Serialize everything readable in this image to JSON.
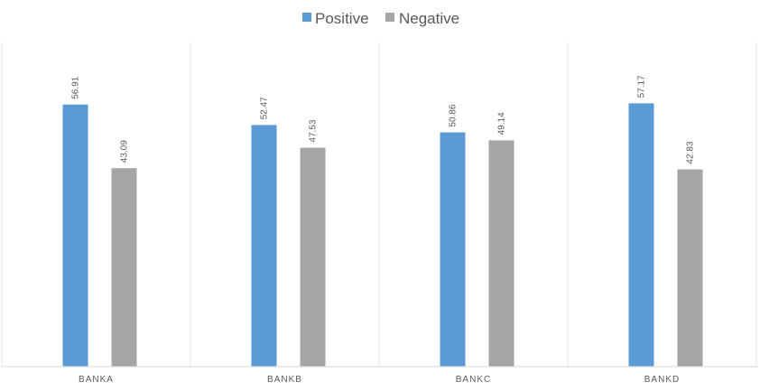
{
  "chart_data": {
    "type": "bar",
    "categories": [
      "BANKA",
      "BANKB",
      "BANKC",
      "BANKD"
    ],
    "series": [
      {
        "name": "Positive",
        "color": "#5b9bd5",
        "values": [
          56.91,
          52.47,
          50.86,
          57.17
        ]
      },
      {
        "name": "Negative",
        "color": "#a5a5a5",
        "values": [
          43.09,
          47.53,
          49.14,
          42.83
        ]
      }
    ],
    "title": "",
    "xlabel": "",
    "ylabel": "",
    "ylim": [
      0,
      60
    ],
    "grid": false,
    "category_dividers": true,
    "legend": "top-center",
    "data_labels": true
  }
}
